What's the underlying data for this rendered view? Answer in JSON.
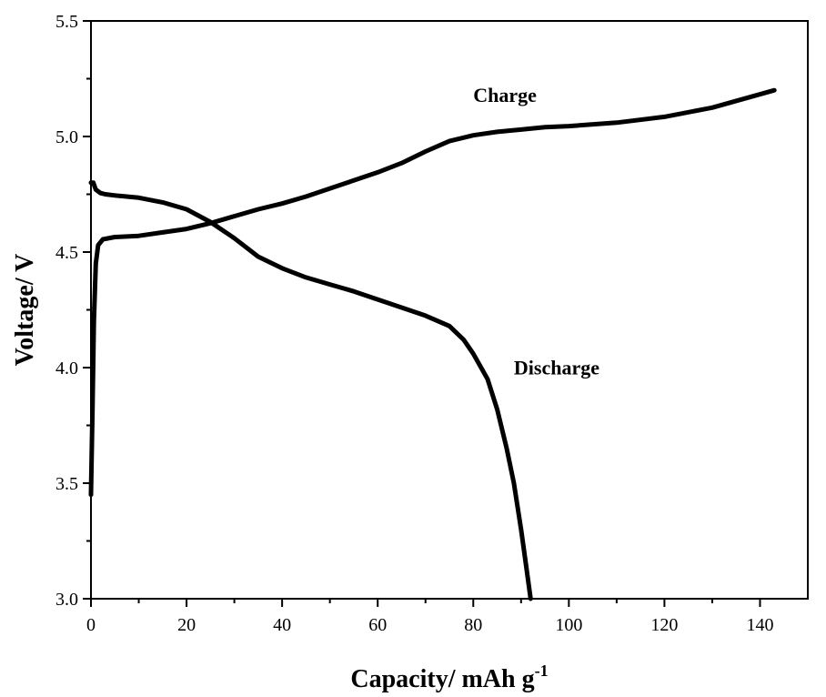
{
  "chart_data": {
    "type": "line",
    "title": "",
    "xlabel": "Capacity/ mAh g",
    "xlabel_superscript": "-1",
    "ylabel": "Voltage/ V",
    "xlim": [
      0,
      150
    ],
    "ylim": [
      3.0,
      5.5
    ],
    "x_ticks": [
      0,
      20,
      40,
      60,
      80,
      100,
      120,
      140
    ],
    "x_tick_labels": [
      "0",
      "20",
      "40",
      "60",
      "80",
      "100",
      "120",
      "140"
    ],
    "y_ticks": [
      3.0,
      3.5,
      4.0,
      4.5,
      5.0,
      5.5
    ],
    "y_tick_labels": [
      "3.0",
      "3.5",
      "4.0",
      "4.5",
      "5.0",
      "5.5"
    ],
    "grid": false,
    "line_color": "#000000",
    "series": [
      {
        "name": "Charge",
        "x": [
          0,
          0.3,
          0.6,
          1.0,
          1.5,
          2.5,
          5,
          10,
          15,
          20,
          25,
          30,
          35,
          40,
          45,
          50,
          55,
          60,
          65,
          70,
          75,
          80,
          85,
          90,
          95,
          100,
          110,
          120,
          130,
          143
        ],
        "y": [
          3.45,
          3.8,
          4.2,
          4.45,
          4.53,
          4.555,
          4.565,
          4.57,
          4.585,
          4.6,
          4.625,
          4.655,
          4.685,
          4.71,
          4.74,
          4.775,
          4.81,
          4.845,
          4.885,
          4.935,
          4.98,
          5.005,
          5.02,
          5.03,
          5.04,
          5.045,
          5.06,
          5.085,
          5.125,
          5.2
        ]
      },
      {
        "name": "Discharge",
        "x": [
          0,
          0.5,
          1,
          2,
          3,
          5,
          10,
          15,
          20,
          25,
          30,
          35,
          40,
          45,
          50,
          55,
          60,
          65,
          70,
          75,
          78,
          80,
          83,
          85,
          87,
          88.5,
          90,
          91,
          92
        ],
        "y": [
          4.8,
          4.8,
          4.77,
          4.755,
          4.75,
          4.745,
          4.735,
          4.715,
          4.685,
          4.63,
          4.56,
          4.48,
          4.43,
          4.39,
          4.36,
          4.33,
          4.295,
          4.26,
          4.225,
          4.18,
          4.12,
          4.06,
          3.95,
          3.82,
          3.65,
          3.5,
          3.3,
          3.15,
          3.0
        ]
      }
    ],
    "annotations": [
      {
        "text": "Charge",
        "x": 80,
        "y": 5.15
      },
      {
        "text": "Discharge",
        "x": 88.5,
        "y": 3.97
      }
    ]
  }
}
